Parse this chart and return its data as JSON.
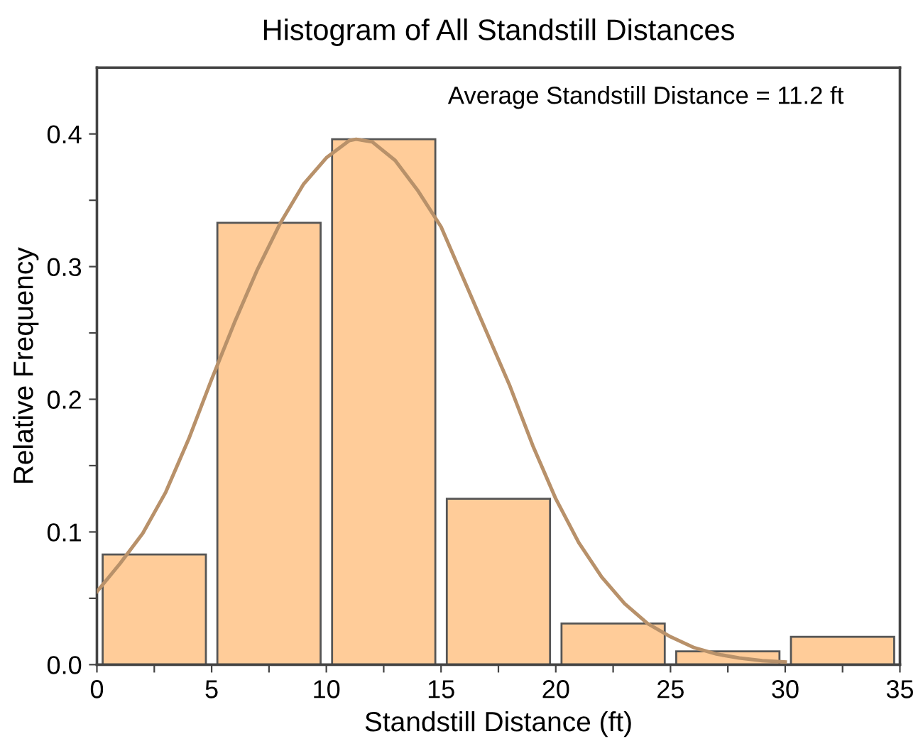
{
  "chart_data": {
    "type": "histogram",
    "title": "Histogram of All Standstill Distances",
    "xlabel": "Standstill Distance (ft)",
    "ylabel": "Relative Frequency",
    "annotations": [
      "Average Standstill Distance = 11.2 ft"
    ],
    "bins": [
      0,
      5,
      10,
      15,
      20,
      25,
      30,
      35
    ],
    "values": [
      0.083,
      0.333,
      0.396,
      0.125,
      0.031,
      0.01,
      0.021
    ],
    "color": "#ffcc99",
    "series": [
      {
        "type": "line",
        "color": "#b8916a",
        "x": [
          0,
          1,
          2,
          3,
          4,
          5,
          6,
          7,
          8,
          9,
          10,
          11,
          11.3,
          12,
          13,
          14,
          15,
          16,
          17,
          18,
          19,
          20,
          21,
          22,
          23,
          24,
          25,
          26,
          27,
          28,
          29,
          30
        ],
        "values": [
          0.055,
          0.076,
          0.099,
          0.13,
          0.17,
          0.215,
          0.258,
          0.298,
          0.333,
          0.362,
          0.382,
          0.395,
          0.396,
          0.394,
          0.38,
          0.357,
          0.33,
          0.29,
          0.25,
          0.21,
          0.165,
          0.125,
          0.092,
          0.066,
          0.046,
          0.031,
          0.021,
          0.013,
          0.008,
          0.005,
          0.003,
          0.002
        ]
      }
    ],
    "xlim": [
      0,
      35
    ],
    "ylim": [
      0,
      0.45
    ],
    "xticks": [
      0,
      {
        "value": 2.5,
        "label": null
      },
      5,
      {
        "value": 7.5,
        "label": null
      },
      10,
      {
        "value": 12.5,
        "label": null
      },
      15,
      {
        "value": 17.5,
        "label": null
      },
      20,
      {
        "value": 22.5,
        "label": null
      },
      25,
      {
        "value": 27.5,
        "label": null
      },
      30,
      {
        "value": 32.5,
        "label": null
      },
      35
    ],
    "yticks": [
      {
        "value": 0,
        "label": "0.0"
      },
      {
        "value": 0.05,
        "label": null
      },
      0.1,
      {
        "value": 0.15,
        "label": null
      },
      0.2,
      {
        "value": 0.25,
        "label": null
      },
      0.3,
      {
        "value": 0.35,
        "label": null
      },
      0.4
    ],
    "grid": false,
    "legend": false
  }
}
